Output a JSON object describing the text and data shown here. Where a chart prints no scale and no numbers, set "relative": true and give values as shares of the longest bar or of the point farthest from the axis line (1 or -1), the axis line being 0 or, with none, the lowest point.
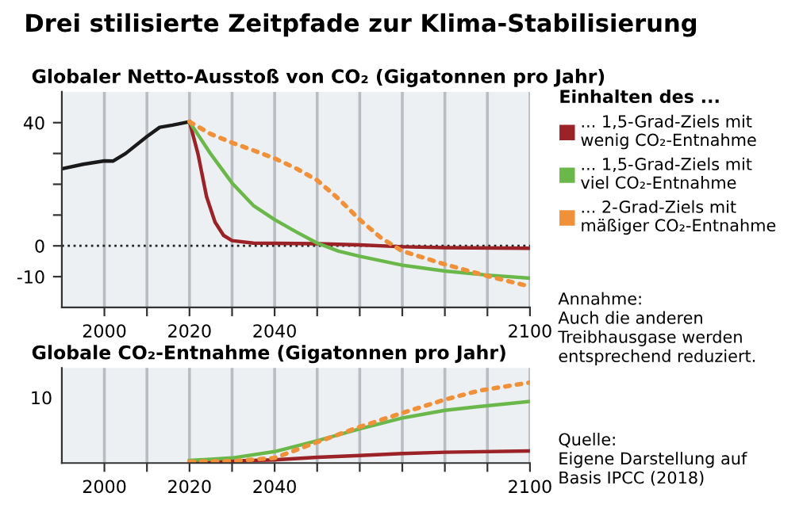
{
  "chart_data": [
    {
      "type": "line",
      "title": "Drei stilisierte Zeitpfade zur Klima-Stabilisierung",
      "subtitle": "Globaler Netto-Ausstoß von CO₂ (Gigatonnen pro Jahr)",
      "legend_title": "Einhalten des ...",
      "legend": "right",
      "xlim": [
        1990,
        2100
      ],
      "xticks": [
        2000,
        {
          "value": 2010,
          "label": null
        },
        2020,
        {
          "value": 2030,
          "label": null
        },
        2040,
        {
          "value": 2050,
          "label": null
        },
        {
          "value": 2060,
          "label": null
        },
        {
          "value": 2070,
          "label": null
        },
        {
          "value": 2080,
          "label": null
        },
        {
          "value": 2090,
          "label": null
        },
        2100
      ],
      "ylim": [
        -20,
        50
      ],
      "yticks": [
        -10,
        0,
        {
          "value": 10,
          "label": null
        },
        {
          "value": 20,
          "label": null
        },
        {
          "value": 30,
          "label": null
        },
        40
      ],
      "grid": "x",
      "ref_lines": [
        {
          "axis": "y",
          "value": 0,
          "label": null,
          "color": "#222222",
          "line_style": "dotted"
        }
      ],
      "series": [
        {
          "color": "#1a1a1a",
          "line_style": "solid",
          "x": [
            1990,
            1995,
            2000,
            2002,
            2005,
            2010,
            2013,
            2016,
            2020
          ],
          "values": [
            25,
            26.5,
            27.6,
            27.5,
            30,
            35.5,
            38.5,
            39.2,
            40.3
          ]
        },
        {
          "name": "... 1,5-Grad-Ziels mit\nwenig CO₂-Entnahme",
          "color": "#9b2226",
          "line_style": "solid",
          "x": [
            2020,
            2022,
            2024,
            2026,
            2028,
            2030,
            2035,
            2050,
            2060,
            2070,
            2080,
            2100
          ],
          "values": [
            40.3,
            29.8,
            16,
            7.7,
            3.4,
            1.7,
            0.9,
            0.7,
            0.3,
            -0.3,
            -0.6,
            -0.8
          ]
        },
        {
          "name": "... 1,5-Grad-Ziels mit\nviel CO₂-Entnahme",
          "color": "#6bb84a",
          "line_style": "solid",
          "x": [
            2020,
            2025,
            2030,
            2035,
            2040,
            2045,
            2050,
            2055,
            2060,
            2070,
            2080,
            2090,
            2100
          ],
          "values": [
            40.3,
            29.8,
            20.4,
            13.1,
            8.5,
            4.6,
            0.9,
            -1.7,
            -3.4,
            -6.3,
            -8.2,
            -9.5,
            -10.5
          ]
        },
        {
          "name": "... 2-Grad-Ziels mit\nmäßiger CO₂-Entnahme",
          "color": "#f0913a",
          "line_style": "dotted",
          "x": [
            2020,
            2025,
            2030,
            2035,
            2040,
            2045,
            2050,
            2055,
            2060,
            2065,
            2070,
            2080,
            2090,
            2100
          ],
          "values": [
            40.3,
            36.3,
            33.5,
            31,
            28.4,
            25.2,
            21.3,
            15.3,
            8.5,
            2.6,
            -1.7,
            -6,
            -9.8,
            -13.2
          ]
        }
      ]
    },
    {
      "type": "line",
      "title": "Globale CO₂-Entnahme (Gigatonnen pro Jahr)",
      "xlim": [
        1990,
        2100
      ],
      "xticks": [
        2000,
        {
          "value": 2010,
          "label": null
        },
        2020,
        {
          "value": 2030,
          "label": null
        },
        2040,
        {
          "value": 2050,
          "label": null
        },
        {
          "value": 2060,
          "label": null
        },
        {
          "value": 2070,
          "label": null
        },
        {
          "value": 2080,
          "label": null
        },
        {
          "value": 2090,
          "label": null
        },
        2100
      ],
      "relative": true,
      "grid": "x",
      "annotations": [
        "10",
        "Annahme:\nAuch die anderen\nTreibhausgase werden\nentsprechend reduziert.",
        "Quelle:\nEigene Darstellung auf\nBasis IPCC (2018)"
      ],
      "series": [
        {
          "color": "#9b2226",
          "line_style": "solid",
          "x": [
            2020,
            2030,
            2040,
            2050,
            2060,
            2070,
            2080,
            2100
          ],
          "values": [
            0.016,
            0.024,
            0.039,
            0.071,
            0.094,
            0.118,
            0.134,
            0.15
          ]
        },
        {
          "color": "#6bb84a",
          "line_style": "solid",
          "x": [
            2020,
            2030,
            2040,
            2050,
            2060,
            2070,
            2080,
            2088,
            2100
          ],
          "values": [
            0.031,
            0.063,
            0.142,
            0.276,
            0.425,
            0.559,
            0.654,
            0.701,
            0.764
          ]
        },
        {
          "color": "#f0913a",
          "line_style": "dotted",
          "x": [
            2020,
            2030,
            2040,
            2050,
            2060,
            2070,
            2080,
            2088,
            2100
          ],
          "values": [
            0.016,
            0.024,
            0.063,
            0.26,
            0.449,
            0.622,
            0.787,
            0.898,
            1
          ]
        }
      ]
    }
  ]
}
